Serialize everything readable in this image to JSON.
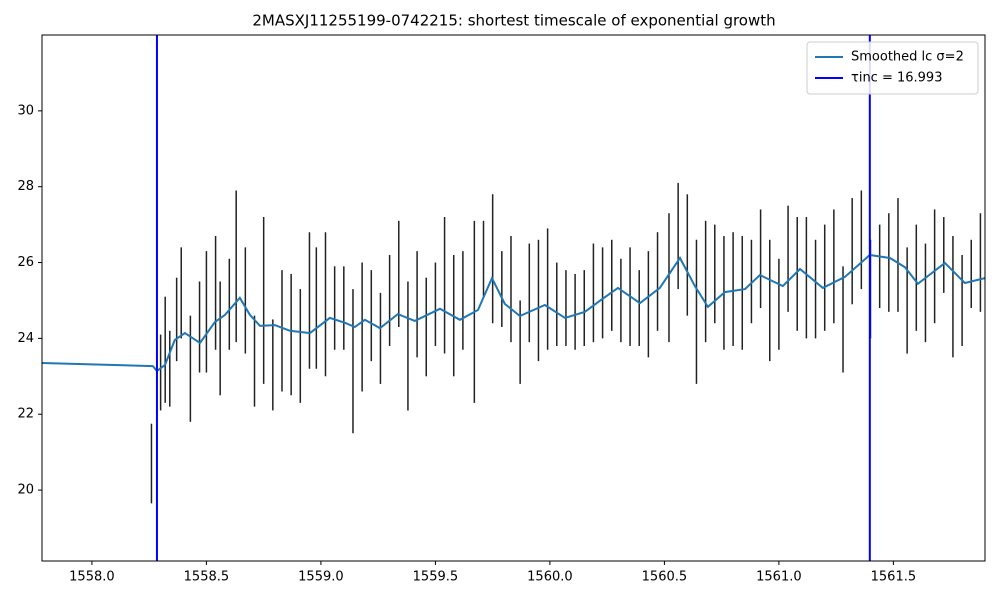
{
  "chart_data": {
    "type": "line",
    "title": "2MASXJ11255199-0742215: shortest timescale of exponential growth",
    "xlim": [
      1557.782,
      1561.9
    ],
    "ylim": [
      18.13,
      32.0
    ],
    "xticks": [
      {
        "value": 1558.0,
        "label": "1558.0"
      },
      {
        "value": 1558.5,
        "label": "1558.5"
      },
      {
        "value": 1559.0,
        "label": "1559.0"
      },
      {
        "value": 1559.5,
        "label": "1559.5"
      },
      {
        "value": 1560.0,
        "label": "1560.0"
      },
      {
        "value": 1560.5,
        "label": "1560.5"
      },
      {
        "value": 1561.0,
        "label": "1561.0"
      },
      {
        "value": 1561.5,
        "label": "1561.5"
      }
    ],
    "yticks": [
      20,
      22,
      24,
      26,
      28,
      30
    ],
    "legend": "upper right",
    "series": [
      {
        "name": "Smoothed lc σ=2",
        "color": "#1f77b4",
        "x": [
          1557.782,
          1558.266,
          1558.284,
          1558.319,
          1558.362,
          1558.406,
          1558.472,
          1558.537,
          1558.581,
          1558.646,
          1558.69,
          1558.734,
          1558.799,
          1558.865,
          1558.952,
          1559.039,
          1559.105,
          1559.148,
          1559.192,
          1559.258,
          1559.336,
          1559.41,
          1559.52,
          1559.607,
          1559.686,
          1559.747,
          1559.803,
          1559.869,
          1559.978,
          1560.066,
          1560.153,
          1560.218,
          1560.297,
          1560.393,
          1560.48,
          1560.568,
          1560.633,
          1560.69,
          1560.764,
          1560.852,
          1560.917,
          1561.017,
          1561.092,
          1561.192,
          1561.288,
          1561.397,
          1561.485,
          1561.55,
          1561.607,
          1561.725,
          1561.812,
          1561.9
        ],
        "values": [
          23.35,
          23.27,
          23.14,
          23.3,
          23.96,
          24.14,
          23.88,
          24.43,
          24.62,
          25.07,
          24.62,
          24.33,
          24.35,
          24.2,
          24.14,
          24.54,
          24.41,
          24.3,
          24.49,
          24.27,
          24.64,
          24.46,
          24.78,
          24.49,
          24.75,
          25.59,
          24.91,
          24.59,
          24.88,
          24.54,
          24.7,
          24.99,
          25.33,
          24.93,
          25.33,
          26.12,
          25.38,
          24.83,
          25.22,
          25.3,
          25.67,
          25.38,
          25.83,
          25.33,
          25.62,
          26.2,
          26.12,
          25.88,
          25.44,
          25.99,
          25.46,
          25.59
        ]
      }
    ],
    "vlines": [
      {
        "name": "τinc = 16.993",
        "color": "#0000ff",
        "x": 1558.284
      },
      {
        "color": "#0000ff",
        "x": 1561.397
      }
    ],
    "errorbars": {
      "color": "#222222",
      "x": [
        1558.26,
        1558.3,
        1558.32,
        1558.34,
        1558.37,
        1558.39,
        1558.43,
        1558.47,
        1558.5,
        1558.54,
        1558.56,
        1558.6,
        1558.63,
        1558.67,
        1558.71,
        1558.75,
        1558.79,
        1558.83,
        1558.87,
        1558.91,
        1558.95,
        1558.98,
        1559.02,
        1559.06,
        1559.1,
        1559.14,
        1559.18,
        1559.22,
        1559.26,
        1559.3,
        1559.34,
        1559.38,
        1559.42,
        1559.46,
        1559.5,
        1559.54,
        1559.58,
        1559.62,
        1559.67,
        1559.71,
        1559.75,
        1559.79,
        1559.83,
        1559.87,
        1559.91,
        1559.95,
        1559.99,
        1560.03,
        1560.07,
        1560.11,
        1560.15,
        1560.19,
        1560.23,
        1560.27,
        1560.31,
        1560.35,
        1560.39,
        1560.43,
        1560.47,
        1560.52,
        1560.56,
        1560.6,
        1560.64,
        1560.68,
        1560.72,
        1560.76,
        1560.8,
        1560.84,
        1560.88,
        1560.92,
        1560.96,
        1561.0,
        1561.04,
        1561.08,
        1561.12,
        1561.16,
        1561.2,
        1561.24,
        1561.28,
        1561.32,
        1561.36,
        1561.4,
        1561.44,
        1561.48,
        1561.52,
        1561.56,
        1561.6,
        1561.64,
        1561.68,
        1561.72,
        1561.76,
        1561.8,
        1561.84,
        1561.88
      ],
      "values": [
        20.7,
        23.1,
        23.7,
        23.2,
        24.5,
        25.2,
        23.2,
        24.3,
        24.7,
        25.2,
        24.0,
        24.9,
        25.9,
        25.0,
        23.4,
        25.0,
        23.3,
        24.2,
        24.1,
        23.8,
        25.0,
        24.8,
        24.9,
        24.8,
        24.8,
        23.4,
        24.3,
        24.6,
        24.0,
        25.0,
        25.7,
        23.8,
        24.9,
        24.3,
        24.9,
        25.4,
        24.6,
        25.0,
        24.7,
        26.1,
        26.1,
        25.3,
        25.3,
        23.9,
        25.2,
        25.0,
        25.3,
        24.9,
        24.8,
        24.7,
        24.8,
        25.2,
        25.2,
        25.4,
        25.0,
        25.1,
        24.8,
        24.9,
        25.5,
        25.6,
        26.7,
        26.2,
        24.7,
        25.5,
        25.7,
        25.2,
        25.3,
        25.2,
        25.5,
        26.1,
        25.0,
        24.9,
        26.1,
        25.7,
        25.6,
        25.3,
        25.6,
        25.9,
        24.5,
        26.3,
        26.6,
        25.3,
        25.9,
        26.0,
        26.2,
        25.0,
        25.6,
        25.2,
        25.9,
        26.2,
        25.1,
        25.0,
        25.7,
        26.0
      ],
      "errors": [
        1.05,
        1.0,
        1.4,
        1.0,
        1.1,
        1.2,
        1.4,
        1.2,
        1.6,
        1.5,
        1.5,
        1.2,
        2.0,
        1.4,
        1.2,
        2.2,
        1.2,
        1.6,
        1.6,
        1.5,
        1.8,
        1.6,
        1.9,
        1.1,
        1.1,
        1.9,
        1.7,
        1.2,
        1.2,
        1.2,
        1.4,
        1.7,
        1.4,
        1.3,
        1.1,
        1.8,
        1.6,
        1.3,
        2.4,
        1.0,
        1.7,
        1.0,
        1.4,
        1.1,
        1.3,
        1.6,
        1.6,
        1.1,
        1.0,
        1.0,
        1.0,
        1.3,
        1.2,
        1.2,
        1.1,
        1.3,
        1.0,
        1.4,
        1.3,
        1.7,
        1.4,
        1.6,
        1.9,
        1.6,
        1.3,
        1.5,
        1.5,
        1.5,
        1.1,
        1.3,
        1.6,
        1.2,
        1.4,
        1.5,
        1.6,
        1.3,
        1.4,
        1.5,
        1.4,
        1.4,
        1.3,
        1.3,
        1.1,
        1.3,
        1.5,
        1.4,
        1.4,
        1.3,
        1.5,
        1.0,
        1.6,
        1.2,
        0.9,
        1.3
      ]
    }
  }
}
